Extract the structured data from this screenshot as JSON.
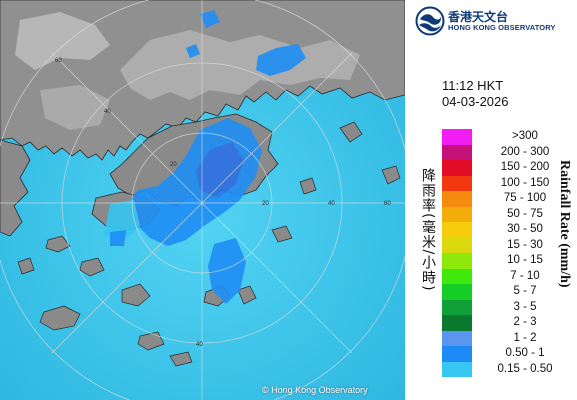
{
  "header": {
    "logo_cn": "香港天文台",
    "logo_en": "HONG KONG OBSERVATORY",
    "emblem_icon": "hko-emblem-icon"
  },
  "timestamp": {
    "time": "11:12 HKT",
    "date": "04-03-2026"
  },
  "map": {
    "copyright": "© Hong Kong Observatory",
    "range_rings": [
      {
        "label": "20"
      },
      {
        "label": "40"
      },
      {
        "label": "60"
      }
    ],
    "colors": {
      "sea": "#39c6ec",
      "land": "#8c8c8c"
    }
  },
  "legend": {
    "title_cn": "降雨率(毫米/小時)",
    "title_en": "Rainfall Rate (mm/h)",
    "items": [
      {
        "label": ">300",
        "color": "#f21df2"
      },
      {
        "label": "200 - 300",
        "color": "#c4127a"
      },
      {
        "label": "150 - 200",
        "color": "#e40d28"
      },
      {
        "label": "100 - 150",
        "color": "#f2380f"
      },
      {
        "label": "75 - 100",
        "color": "#f58a0e"
      },
      {
        "label": "50 - 75",
        "color": "#f3ad0b"
      },
      {
        "label": "30 - 50",
        "color": "#f6cb0a"
      },
      {
        "label": "15 - 30",
        "color": "#d9d90e"
      },
      {
        "label": "10 - 15",
        "color": "#8fe80c"
      },
      {
        "label": "7 - 10",
        "color": "#3fe90b"
      },
      {
        "label": "5 - 7",
        "color": "#16cd26"
      },
      {
        "label": "3 - 5",
        "color": "#109f38"
      },
      {
        "label": "2 - 3",
        "color": "#0c7a2e"
      },
      {
        "label": "1 - 2",
        "color": "#5a96f0"
      },
      {
        "label": "0.50 - 1",
        "color": "#1d8af5"
      },
      {
        "label": "0.15 - 0.50",
        "color": "#35c6f2"
      }
    ]
  }
}
